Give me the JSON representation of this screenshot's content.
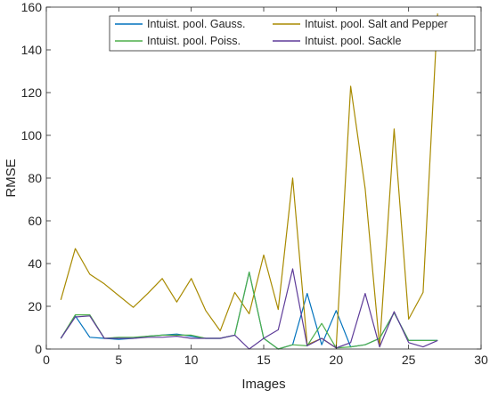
{
  "chart_data": {
    "type": "line",
    "title": "",
    "xlabel": "Images",
    "ylabel": "RMSE",
    "xlim": [
      0,
      30
    ],
    "ylim": [
      0,
      160
    ],
    "xticks": [
      0,
      5,
      10,
      15,
      20,
      25,
      30
    ],
    "yticks": [
      0,
      20,
      40,
      60,
      80,
      100,
      120,
      140,
      160
    ],
    "grid": false,
    "legend_placement": "top-right",
    "legend_columns": 2,
    "series": [
      {
        "name": "Intuist. pool. Gauss.",
        "color": "#0072BD",
        "x": [
          1,
          2,
          3,
          4,
          5,
          6,
          7,
          8,
          9,
          10,
          11,
          12,
          13,
          14,
          15,
          16,
          17,
          18,
          19,
          20,
          21,
          22,
          23,
          24,
          25,
          26,
          27
        ],
        "y": [
          5,
          15.5,
          5.5,
          5,
          4.5,
          5,
          6,
          6.5,
          7,
          6,
          5,
          5,
          6.5,
          36,
          5,
          0,
          2,
          26,
          2,
          18,
          1,
          2,
          5,
          17,
          4,
          4,
          4
        ]
      },
      {
        "name": "Intuist. pool. Salt and Pepper",
        "color": "#A88A00",
        "x": [
          1,
          2,
          3,
          4,
          5,
          6,
          7,
          8,
          9,
          10,
          11,
          12,
          13,
          14,
          15,
          16,
          17,
          18,
          19,
          20,
          21,
          22,
          23,
          24,
          25,
          26,
          27
        ],
        "y": [
          23,
          47,
          35,
          30.5,
          25,
          19.5,
          26,
          33,
          22,
          33,
          18,
          8.5,
          26.5,
          16.5,
          44,
          18.5,
          80,
          2,
          5,
          0.5,
          123,
          75,
          1,
          103,
          14,
          26.5,
          157
        ]
      },
      {
        "name": "Intuist. pool. Poiss.",
        "color": "#4DAF4A",
        "x": [
          1,
          2,
          3,
          4,
          5,
          6,
          7,
          8,
          9,
          10,
          11,
          12,
          13,
          14,
          15,
          16,
          17,
          18,
          19,
          20,
          21,
          22,
          23,
          24,
          25,
          26,
          27
        ],
        "y": [
          5,
          16,
          16,
          5,
          5.5,
          5.5,
          6,
          6.5,
          6.5,
          6.5,
          5,
          5,
          6.5,
          36,
          5,
          0,
          2,
          1.5,
          12,
          0.5,
          1,
          2,
          5,
          17,
          4,
          4,
          4
        ]
      },
      {
        "name": "Intuist. pool. Sackle",
        "color": "#5E3C99",
        "x": [
          1,
          2,
          3,
          4,
          5,
          6,
          7,
          8,
          9,
          10,
          11,
          12,
          13,
          14,
          15,
          16,
          17,
          18,
          19,
          20,
          21,
          22,
          23,
          24,
          25,
          26,
          27
        ],
        "y": [
          5,
          15,
          15.5,
          5,
          5,
          5,
          5.5,
          5.5,
          6,
          5,
          5,
          5,
          6.5,
          0,
          5,
          9,
          37.5,
          1.5,
          5,
          0.5,
          3,
          26,
          1,
          17.5,
          3,
          1,
          4
        ]
      }
    ]
  }
}
